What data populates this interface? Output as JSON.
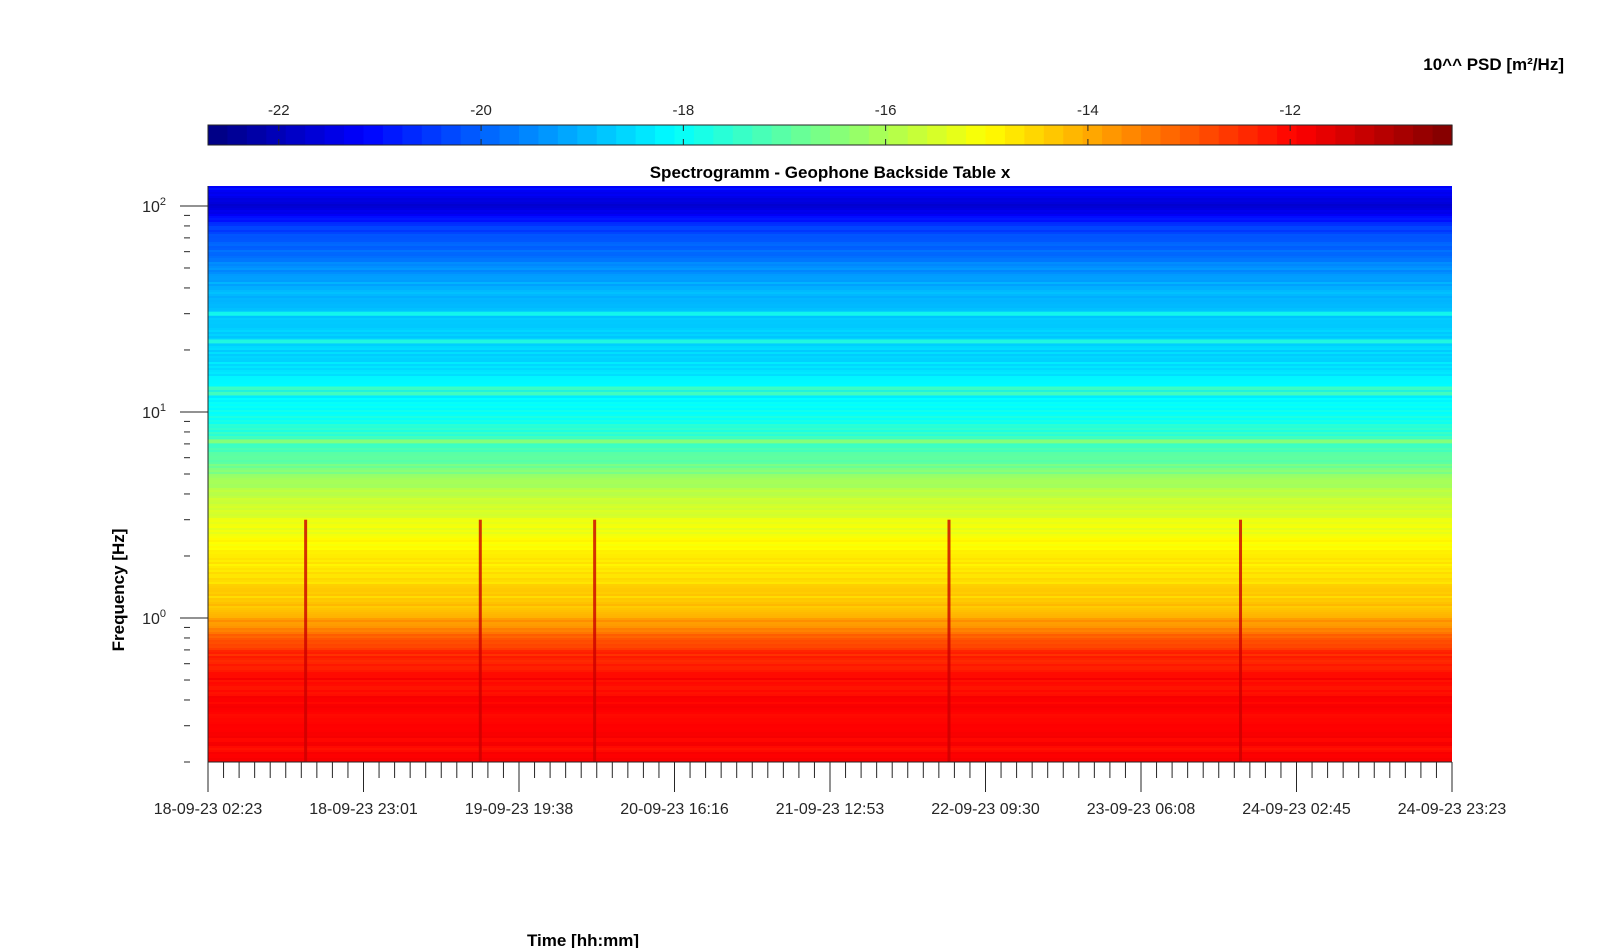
{
  "chart_data": {
    "type": "heatmap",
    "title": "Spectrogramm - Geophone Backside Table x",
    "xlabel": "Time [hh:mm]",
    "ylabel": "Frequency [Hz]",
    "colorbar": {
      "label": "10^^ PSD [m²/Hz]",
      "ticks": [
        "-22",
        "-20",
        "-18",
        "-16",
        "-14",
        "-12"
      ],
      "tick_values": [
        -22,
        -20,
        -18,
        -16,
        -14,
        -12
      ],
      "range": [
        -22.7,
        -10.4
      ],
      "colormap": "jet",
      "placement": "top"
    },
    "x_tick_labels": [
      "18-09-23 02:23",
      "18-09-23 23:01",
      "19-09-23 19:38",
      "20-09-23 16:16",
      "21-09-23 12:53",
      "22-09-23 09:30",
      "23-09-23 06:08",
      "24-09-23 02:45",
      "24-09-23 23:23"
    ],
    "xlim": [
      "18-09-23 02:23",
      "24-09-23 23:23"
    ],
    "y_scale": "log",
    "ylim": [
      0.2,
      125
    ],
    "y_tick_labels": [
      {
        "base": "10",
        "exp": "0",
        "value": 1
      },
      {
        "base": "10",
        "exp": "1",
        "value": 10
      },
      {
        "base": "10",
        "exp": "2",
        "value": 100
      }
    ],
    "psd_profile_by_frequency_hz": [
      {
        "f": 0.2,
        "log_psd": -12.0
      },
      {
        "f": 0.5,
        "log_psd": -12.0
      },
      {
        "f": 0.7,
        "log_psd": -12.5
      },
      {
        "f": 0.9,
        "log_psd": -13.6
      },
      {
        "f": 1.2,
        "log_psd": -14.4
      },
      {
        "f": 2.0,
        "log_psd": -14.8
      },
      {
        "f": 4.0,
        "log_psd": -15.8
      },
      {
        "f": 6.0,
        "log_psd": -17.0
      },
      {
        "f": 10.0,
        "log_psd": -18.0
      },
      {
        "f": 20.0,
        "log_psd": -18.6
      },
      {
        "f": 40.0,
        "log_psd": -19.0
      },
      {
        "f": 80.0,
        "log_psd": -20.5
      },
      {
        "f": 100.0,
        "log_psd": -21.8
      },
      {
        "f": 125.0,
        "log_psd": -21.0
      }
    ],
    "spectral_lines_hz": [
      7.2,
      12.3,
      13.0,
      22.0,
      30.0
    ],
    "transient_events": [
      "18-09-23 15:20",
      "19-09-23 14:30",
      "20-09-23 05:40",
      "22-09-23 04:40",
      "23-09-23 19:20"
    ]
  }
}
